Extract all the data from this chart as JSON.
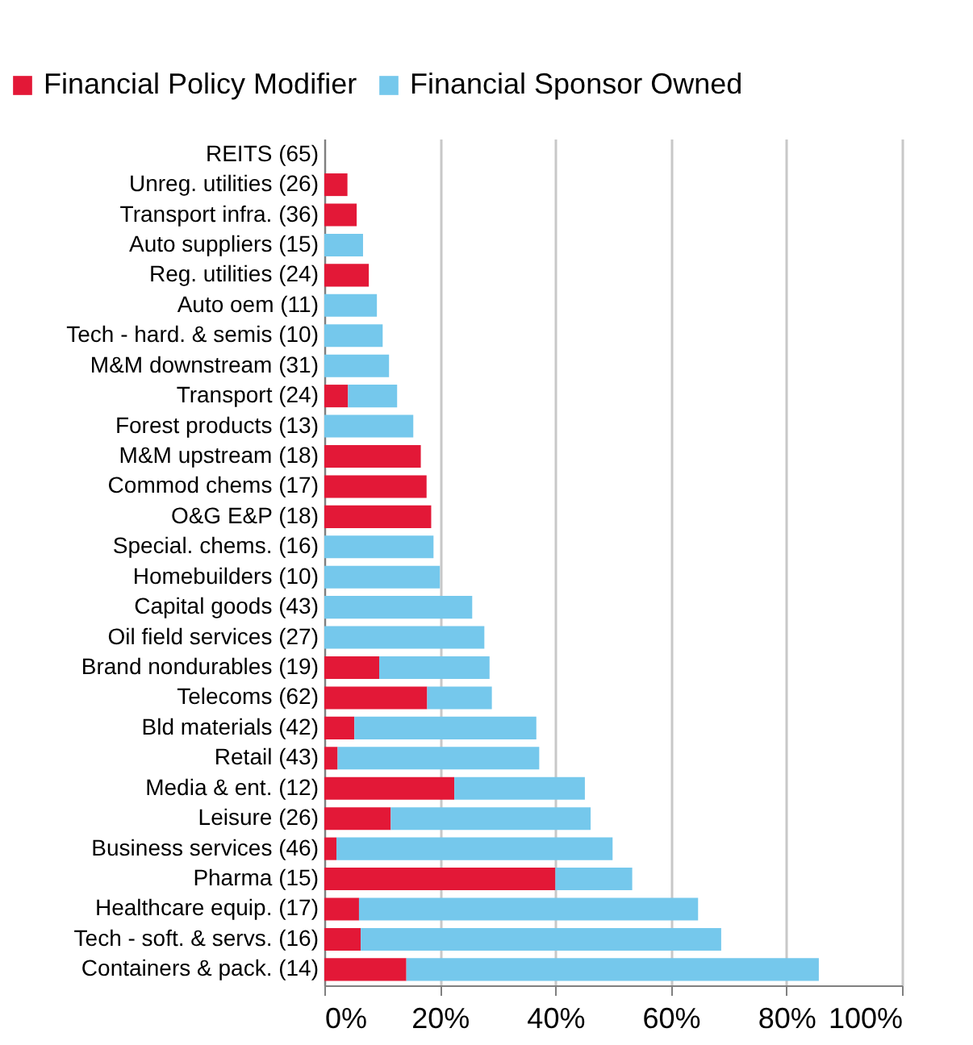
{
  "chart_data": {
    "type": "bar",
    "orientation": "horizontal",
    "stacked": true,
    "categories": [
      "REITS (65)",
      "Unreg. utilities (26)",
      "Transport infra. (36)",
      "Auto suppliers (15)",
      "Reg. utilities (24)",
      "Auto oem (11)",
      "Tech - hard. & semis (10)",
      "M&M downstream (31)",
      "Transport (24)",
      "Forest products (13)",
      "M&M upstream (18)",
      "Commod chems (17)",
      "O&G E&P (18)",
      "Special. chems. (16)",
      "Homebuilders (10)",
      "Capital goods (43)",
      "Oil field services (27)",
      "Brand nondurables (19)",
      "Telecoms (62)",
      "Bld materials (42)",
      "Retail (43)",
      "Media & ent. (12)",
      "Leisure (26)",
      "Business services (46)",
      "Pharma (15)",
      "Healthcare equip. (17)",
      "Tech - soft. & servs. (16)",
      "Containers & pack. (14)"
    ],
    "series": [
      {
        "name": "Financial Policy Modifier",
        "color": "#e31837",
        "values": [
          0,
          4,
          5.6,
          0,
          7.7,
          0,
          0,
          0,
          4.1,
          0,
          16.7,
          17.7,
          18.5,
          0,
          0,
          0,
          0,
          9.5,
          17.8,
          5.2,
          2.3,
          22.5,
          11.5,
          2.1,
          40,
          6,
          6.3,
          14.2
        ]
      },
      {
        "name": "Financial Sponsor Owned",
        "color": "#75c8ec",
        "values": [
          0,
          0,
          0,
          6.7,
          0,
          9.1,
          10.1,
          11.2,
          8.5,
          15.4,
          0,
          0,
          0,
          18.9,
          20,
          25.6,
          27.7,
          19.1,
          11.2,
          31.5,
          34.9,
          22.6,
          34.6,
          47.8,
          13.3,
          58.7,
          62.4,
          71.4
        ]
      }
    ],
    "xlim": [
      0,
      100
    ],
    "xticks": [
      {
        "value": 0,
        "label": "0%"
      },
      {
        "value": 20,
        "label": "20%"
      },
      {
        "value": 40,
        "label": "40%"
      },
      {
        "value": 60,
        "label": "60%"
      },
      {
        "value": 80,
        "label": "80%"
      },
      {
        "value": 100,
        "label": "100%"
      }
    ],
    "grid": "x",
    "legend": "top"
  }
}
